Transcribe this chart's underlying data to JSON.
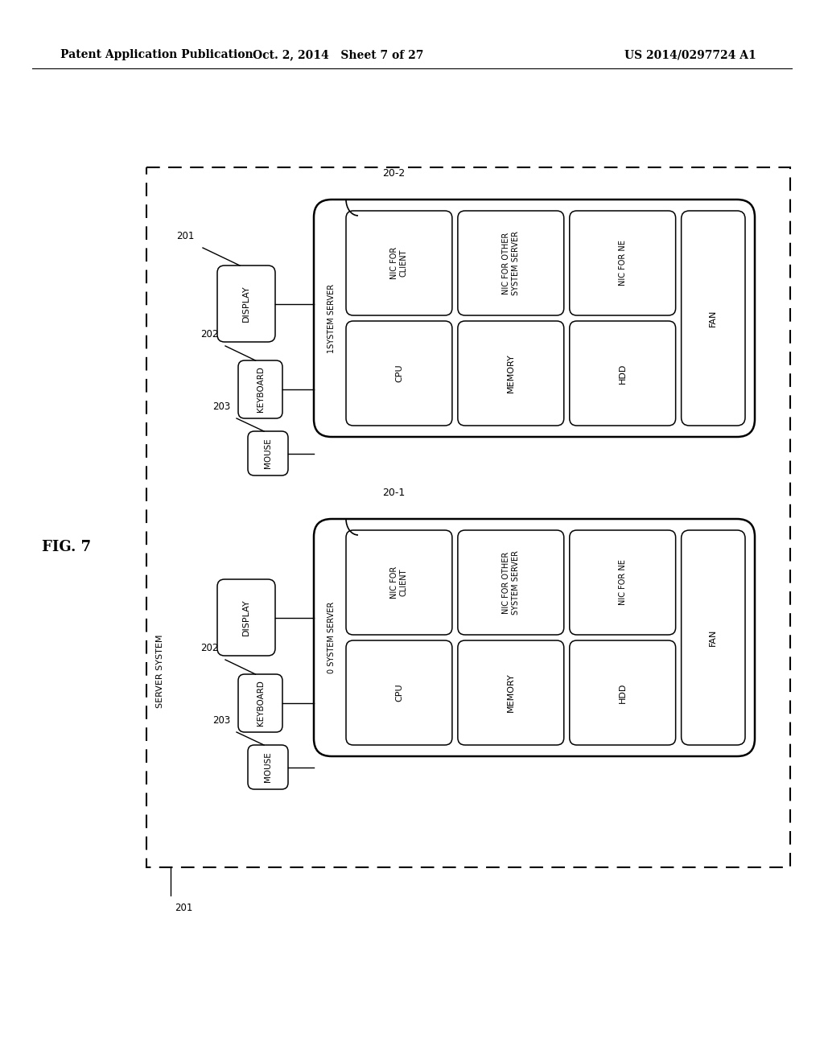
{
  "bg_color": "#ffffff",
  "header_left": "Patent Application Publication",
  "header_mid": "Oct. 2, 2014   Sheet 7 of 27",
  "header_right": "US 2014/0297724 A1",
  "fig_label": "FIG. 7"
}
